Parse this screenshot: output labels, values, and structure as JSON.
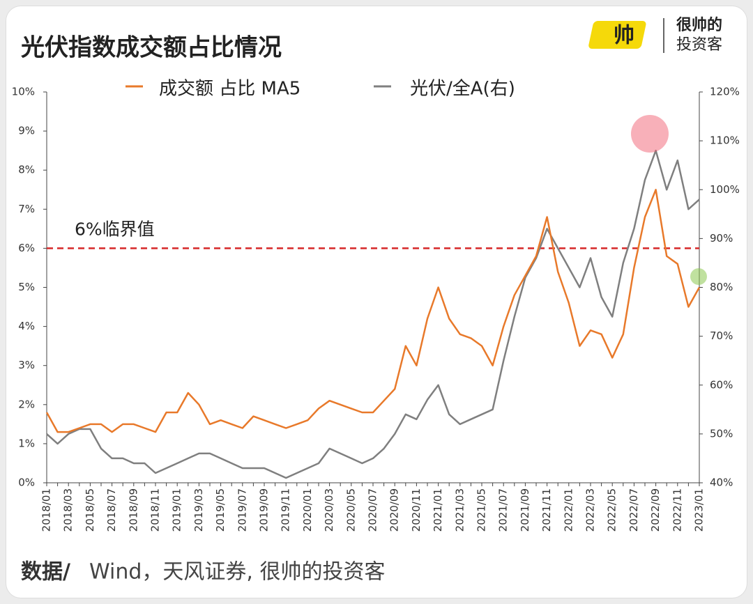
{
  "chart_data": {
    "type": "line",
    "title": "光伏指数成交额占比情况",
    "logo_mark": "帅",
    "logo_line1": "很帅的",
    "logo_line2": "投资客",
    "source_label": "数据/",
    "source": "Wind，天风证券, 很帅的投资客",
    "x": [
      "2018/01",
      null,
      "2018/03",
      null,
      "2018/05",
      null,
      "2018/07",
      null,
      "2018/09",
      null,
      "2018/11",
      null,
      "2019/01",
      null,
      "2019/03",
      null,
      "2019/05",
      null,
      "2019/07",
      null,
      "2019/09",
      null,
      "2019/11",
      null,
      "2020/01",
      null,
      "2020/03",
      null,
      "2020/05",
      null,
      "2020/07",
      null,
      "2020/09",
      null,
      "2020/11",
      null,
      "2021/01",
      null,
      "2021/03",
      null,
      "2021/05",
      null,
      "2021/07",
      null,
      "2021/09",
      null,
      "2021/11",
      null,
      "2022/01",
      null,
      "2022/03",
      null,
      "2022/05",
      null,
      "2022/07",
      null,
      "2022/09",
      null,
      "2022/11",
      null,
      "2023/01"
    ],
    "series": [
      {
        "name": "成交额 占比 MA5",
        "color": "#e8792a",
        "values": [
          1.8,
          1.3,
          1.3,
          1.4,
          1.5,
          1.5,
          1.3,
          1.5,
          1.5,
          1.4,
          1.3,
          1.8,
          1.8,
          2.3,
          2.0,
          1.5,
          1.6,
          1.5,
          1.4,
          1.7,
          1.6,
          1.5,
          1.4,
          1.5,
          1.6,
          1.9,
          2.1,
          2.0,
          1.9,
          1.8,
          1.8,
          2.1,
          2.4,
          3.5,
          3.0,
          4.2,
          5.0,
          4.2,
          3.8,
          3.7,
          3.5,
          3.0,
          4.0,
          4.8,
          5.3,
          5.8,
          6.8,
          5.4,
          4.6,
          3.5,
          3.9,
          3.8,
          3.2,
          3.8,
          5.5,
          6.8,
          7.5,
          5.8,
          5.6,
          4.5,
          5.0
        ]
      },
      {
        "name": "光伏/全A(右)",
        "color": "#7f7f7f",
        "axis": "y2",
        "values": [
          50,
          48,
          50,
          51,
          51,
          47,
          45,
          45,
          44,
          44,
          42,
          43,
          44,
          45,
          46,
          46,
          45,
          44,
          43,
          43,
          43,
          42,
          41,
          42,
          43,
          44,
          47,
          46,
          45,
          44,
          45,
          47,
          50,
          54,
          53,
          57,
          60,
          54,
          52,
          53,
          54,
          55,
          65,
          74,
          82,
          86,
          92,
          88,
          84,
          80,
          86,
          78,
          74,
          85,
          92,
          102,
          108,
          100,
          106,
          96,
          98
        ]
      }
    ],
    "ylim": [
      0,
      10
    ],
    "yticks": [
      {
        "value": 0,
        "label": "0%"
      },
      {
        "value": 1,
        "label": "1%"
      },
      {
        "value": 2,
        "label": "2%"
      },
      {
        "value": 3,
        "label": "3%"
      },
      {
        "value": 4,
        "label": "4%"
      },
      {
        "value": 5,
        "label": "5%"
      },
      {
        "value": 6,
        "label": "6%"
      },
      {
        "value": 7,
        "label": "7%"
      },
      {
        "value": 8,
        "label": "8%"
      },
      {
        "value": 9,
        "label": "9%"
      },
      {
        "value": 10,
        "label": "10%"
      }
    ],
    "y2lim": [
      40,
      120
    ],
    "y2ticks": [
      {
        "value": 40,
        "label": "40%"
      },
      {
        "value": 50,
        "label": "50%"
      },
      {
        "value": 60,
        "label": "60%"
      },
      {
        "value": 70,
        "label": "70%"
      },
      {
        "value": 80,
        "label": "80%"
      },
      {
        "value": 90,
        "label": "90%"
      },
      {
        "value": 100,
        "label": "100%"
      },
      {
        "value": 110,
        "label": "110%"
      },
      {
        "value": 120,
        "label": "120%"
      }
    ],
    "hline": {
      "value": 6,
      "label": "6%临界值",
      "color": "#d62728"
    }
  }
}
